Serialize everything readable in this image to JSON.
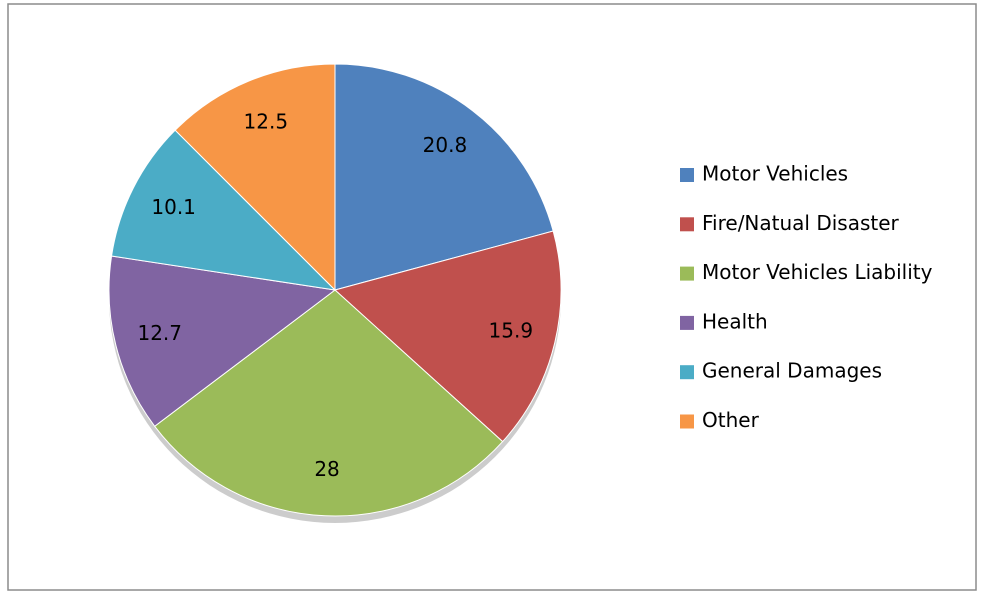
{
  "chart_data": {
    "type": "pie",
    "categories": [
      "Motor Vehicles",
      "Fire/Natual Disaster",
      "Motor Vehicles Liability",
      "Health",
      "General Damages",
      "Other"
    ],
    "values": [
      20.8,
      15.9,
      28,
      12.7,
      10.1,
      12.5
    ],
    "colors": [
      "#4f81bd",
      "#c0504d",
      "#9bbb59",
      "#8064a2",
      "#4bacc6",
      "#f79646"
    ],
    "legend": "right"
  }
}
